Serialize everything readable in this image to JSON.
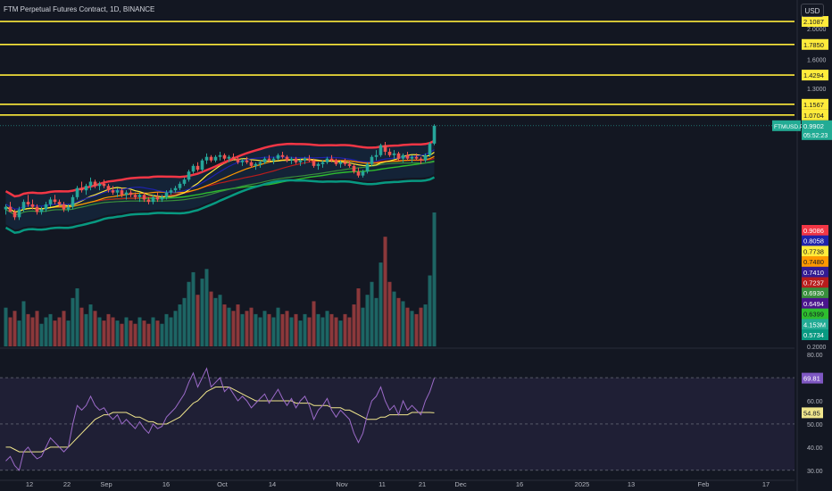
{
  "header": {
    "title": "FTM Perpetual Futures Contract, 1D, BINANCE",
    "currency_button": "USD"
  },
  "colors": {
    "background": "#131722",
    "up": "#26a69a",
    "down": "#ef5350",
    "level_line": "#ffeb3b",
    "rsi": "#9c6bc9",
    "rsi_ma": "#f0e68c",
    "upper_band": "#f23645",
    "lower_band": "#089981"
  },
  "chart_data": {
    "type": "line",
    "symbol": "FTMUSD.P",
    "scale": "log",
    "price_axis": {
      "ticks": [
        "2.0000",
        "1.6000",
        "1.3000",
        "1.0000",
        "0.2000"
      ],
      "level_lines": [
        {
          "value": 2.1087,
          "label": "2.1087"
        },
        {
          "value": 1.785,
          "label": "1.7850"
        },
        {
          "value": 1.4294,
          "label": "1.4294"
        },
        {
          "value": 1.1567,
          "label": "1.1567"
        },
        {
          "value": 1.0704,
          "label": "1.0704"
        }
      ],
      "last_price": {
        "symbol": "FTMUSD.P",
        "value": "0.9902",
        "countdown": "05:52:23"
      },
      "indicator_labels": [
        {
          "value": "0.9086",
          "color": "#f23645"
        },
        {
          "value": "0.8058",
          "color": "#1e22aa"
        },
        {
          "value": "0.7738",
          "color": "#ffeb3b"
        },
        {
          "value": "0.7480",
          "color": "#ff9800"
        },
        {
          "value": "0.7410",
          "color": "#311b92"
        },
        {
          "value": "0.7237",
          "color": "#b71c1c"
        },
        {
          "value": "0.6930",
          "color": "#388e3c"
        },
        {
          "value": "0.6494",
          "color": "#4a148c"
        },
        {
          "value": "0.6399",
          "color": "#2ebd2e"
        },
        {
          "value": "4.153M",
          "color": "#22ab94"
        },
        {
          "value": "0.5734",
          "color": "#089981"
        }
      ]
    },
    "rsi_axis": {
      "ticks": [
        "80.00",
        "60.00",
        "50.00",
        "40.00",
        "30.00"
      ],
      "rsi_value": "69.81",
      "rsi_ma_value": "54.85",
      "upper_band": 70,
      "middle_band": 50,
      "lower_band": 30
    },
    "x_axis": {
      "ticks": [
        "12",
        "22",
        "Sep",
        "16",
        "Oct",
        "14",
        "Nov",
        "11",
        "21",
        "Dec",
        "16",
        "2025",
        "13",
        "Feb",
        "17"
      ]
    },
    "candles": [
      [
        0.54,
        0.56,
        0.52,
        0.55
      ],
      [
        0.55,
        0.57,
        0.53,
        0.53
      ],
      [
        0.53,
        0.54,
        0.5,
        0.51
      ],
      [
        0.51,
        0.55,
        0.5,
        0.54
      ],
      [
        0.54,
        0.58,
        0.53,
        0.57
      ],
      [
        0.57,
        0.6,
        0.55,
        0.56
      ],
      [
        0.56,
        0.58,
        0.54,
        0.55
      ],
      [
        0.55,
        0.56,
        0.52,
        0.53
      ],
      [
        0.53,
        0.55,
        0.52,
        0.54
      ],
      [
        0.54,
        0.57,
        0.53,
        0.56
      ],
      [
        0.56,
        0.59,
        0.55,
        0.58
      ],
      [
        0.58,
        0.6,
        0.56,
        0.57
      ],
      [
        0.57,
        0.58,
        0.55,
        0.56
      ],
      [
        0.56,
        0.57,
        0.53,
        0.54
      ],
      [
        0.54,
        0.56,
        0.53,
        0.55
      ],
      [
        0.55,
        0.6,
        0.54,
        0.59
      ],
      [
        0.59,
        0.64,
        0.58,
        0.63
      ],
      [
        0.63,
        0.66,
        0.61,
        0.62
      ],
      [
        0.62,
        0.65,
        0.6,
        0.64
      ],
      [
        0.64,
        0.68,
        0.62,
        0.66
      ],
      [
        0.66,
        0.67,
        0.63,
        0.64
      ],
      [
        0.64,
        0.66,
        0.62,
        0.65
      ],
      [
        0.65,
        0.67,
        0.63,
        0.64
      ],
      [
        0.64,
        0.65,
        0.61,
        0.62
      ],
      [
        0.62,
        0.64,
        0.6,
        0.61
      ],
      [
        0.61,
        0.63,
        0.59,
        0.62
      ],
      [
        0.62,
        0.63,
        0.59,
        0.6
      ],
      [
        0.6,
        0.62,
        0.58,
        0.61
      ],
      [
        0.61,
        0.62,
        0.59,
        0.6
      ],
      [
        0.6,
        0.61,
        0.58,
        0.59
      ],
      [
        0.59,
        0.61,
        0.57,
        0.6
      ],
      [
        0.6,
        0.61,
        0.57,
        0.58
      ],
      [
        0.58,
        0.59,
        0.56,
        0.57
      ],
      [
        0.57,
        0.6,
        0.56,
        0.59
      ],
      [
        0.59,
        0.61,
        0.57,
        0.58
      ],
      [
        0.58,
        0.6,
        0.57,
        0.59
      ],
      [
        0.59,
        0.62,
        0.58,
        0.61
      ],
      [
        0.61,
        0.63,
        0.6,
        0.62
      ],
      [
        0.62,
        0.64,
        0.61,
        0.63
      ],
      [
        0.63,
        0.66,
        0.62,
        0.65
      ],
      [
        0.65,
        0.68,
        0.64,
        0.67
      ],
      [
        0.67,
        0.72,
        0.66,
        0.71
      ],
      [
        0.71,
        0.75,
        0.7,
        0.74
      ],
      [
        0.74,
        0.76,
        0.71,
        0.72
      ],
      [
        0.72,
        0.78,
        0.71,
        0.77
      ],
      [
        0.77,
        0.81,
        0.75,
        0.79
      ],
      [
        0.79,
        0.8,
        0.76,
        0.77
      ],
      [
        0.77,
        0.8,
        0.76,
        0.79
      ],
      [
        0.79,
        0.82,
        0.77,
        0.8
      ],
      [
        0.8,
        0.81,
        0.77,
        0.78
      ],
      [
        0.78,
        0.8,
        0.76,
        0.79
      ],
      [
        0.79,
        0.81,
        0.77,
        0.78
      ],
      [
        0.78,
        0.79,
        0.75,
        0.76
      ],
      [
        0.76,
        0.78,
        0.74,
        0.77
      ],
      [
        0.77,
        0.79,
        0.75,
        0.76
      ],
      [
        0.76,
        0.77,
        0.73,
        0.74
      ],
      [
        0.74,
        0.76,
        0.72,
        0.75
      ],
      [
        0.75,
        0.77,
        0.73,
        0.76
      ],
      [
        0.76,
        0.79,
        0.75,
        0.78
      ],
      [
        0.78,
        0.8,
        0.76,
        0.77
      ],
      [
        0.77,
        0.79,
        0.75,
        0.78
      ],
      [
        0.78,
        0.81,
        0.77,
        0.8
      ],
      [
        0.8,
        0.82,
        0.78,
        0.79
      ],
      [
        0.79,
        0.8,
        0.76,
        0.77
      ],
      [
        0.77,
        0.79,
        0.75,
        0.78
      ],
      [
        0.78,
        0.79,
        0.75,
        0.76
      ],
      [
        0.76,
        0.78,
        0.74,
        0.77
      ],
      [
        0.77,
        0.79,
        0.75,
        0.78
      ],
      [
        0.78,
        0.8,
        0.76,
        0.77
      ],
      [
        0.77,
        0.78,
        0.73,
        0.74
      ],
      [
        0.74,
        0.76,
        0.72,
        0.75
      ],
      [
        0.75,
        0.77,
        0.73,
        0.76
      ],
      [
        0.76,
        0.79,
        0.75,
        0.78
      ],
      [
        0.78,
        0.8,
        0.76,
        0.77
      ],
      [
        0.77,
        0.78,
        0.74,
        0.75
      ],
      [
        0.75,
        0.77,
        0.73,
        0.76
      ],
      [
        0.76,
        0.78,
        0.74,
        0.75
      ],
      [
        0.75,
        0.77,
        0.73,
        0.74
      ],
      [
        0.74,
        0.75,
        0.7,
        0.71
      ],
      [
        0.71,
        0.73,
        0.68,
        0.69
      ],
      [
        0.69,
        0.72,
        0.68,
        0.71
      ],
      [
        0.71,
        0.76,
        0.7,
        0.75
      ],
      [
        0.75,
        0.8,
        0.74,
        0.79
      ],
      [
        0.79,
        0.83,
        0.77,
        0.8
      ],
      [
        0.8,
        0.87,
        0.79,
        0.86
      ],
      [
        0.86,
        0.88,
        0.8,
        0.82
      ],
      [
        0.82,
        0.84,
        0.79,
        0.8
      ],
      [
        0.8,
        0.83,
        0.78,
        0.81
      ],
      [
        0.81,
        0.82,
        0.77,
        0.78
      ],
      [
        0.78,
        0.81,
        0.76,
        0.8
      ],
      [
        0.8,
        0.82,
        0.77,
        0.78
      ],
      [
        0.78,
        0.8,
        0.76,
        0.79
      ],
      [
        0.79,
        0.81,
        0.77,
        0.78
      ],
      [
        0.78,
        0.79,
        0.75,
        0.77
      ],
      [
        0.77,
        0.81,
        0.76,
        0.8
      ],
      [
        0.8,
        0.88,
        0.79,
        0.87
      ],
      [
        0.87,
        1.0,
        0.86,
        0.9902
      ]
    ],
    "volume_millions": [
      1.2,
      0.9,
      1.1,
      0.8,
      1.4,
      1.0,
      0.9,
      1.1,
      0.7,
      0.9,
      1.0,
      0.8,
      0.9,
      1.1,
      0.8,
      1.5,
      1.8,
      1.2,
      1.0,
      1.3,
      1.1,
      0.9,
      0.8,
      1.0,
      0.9,
      0.8,
      0.7,
      0.9,
      0.8,
      0.7,
      0.9,
      0.8,
      0.7,
      0.9,
      0.8,
      0.7,
      1.0,
      0.9,
      1.1,
      1.3,
      1.5,
      2.0,
      2.3,
      1.6,
      2.1,
      2.4,
      1.7,
      1.5,
      1.6,
      1.3,
      1.2,
      1.1,
      1.3,
      1.0,
      1.1,
      1.2,
      1.0,
      0.9,
      1.1,
      1.0,
      0.9,
      1.2,
      1.0,
      1.1,
      0.9,
      1.0,
      0.8,
      1.0,
      0.9,
      1.4,
      1.0,
      0.9,
      1.1,
      1.0,
      0.9,
      0.8,
      1.0,
      0.9,
      1.3,
      1.8,
      1.2,
      1.6,
      2.0,
      1.5,
      2.6,
      3.4,
      2.0,
      1.7,
      1.5,
      1.4,
      1.2,
      1.1,
      1.0,
      1.2,
      1.3,
      2.2,
      4.153
    ],
    "rsi": [
      34,
      36,
      32,
      30,
      38,
      40,
      37,
      35,
      36,
      40,
      44,
      42,
      40,
      38,
      40,
      50,
      58,
      56,
      58,
      62,
      58,
      56,
      57,
      54,
      52,
      54,
      50,
      52,
      50,
      48,
      51,
      48,
      46,
      50,
      48,
      49,
      53,
      55,
      57,
      60,
      63,
      68,
      72,
      66,
      70,
      74,
      66,
      68,
      70,
      64,
      66,
      63,
      60,
      62,
      60,
      57,
      59,
      61,
      63,
      59,
      62,
      65,
      61,
      58,
      61,
      57,
      60,
      62,
      58,
      52,
      56,
      58,
      61,
      56,
      53,
      56,
      54,
      52,
      46,
      42,
      46,
      54,
      60,
      62,
      66,
      60,
      56,
      58,
      54,
      60,
      56,
      58,
      56,
      54,
      60,
      64,
      69.81
    ],
    "rsi_ma": [
      40,
      40,
      39,
      38,
      38,
      38,
      38,
      38,
      38,
      39,
      40,
      40,
      40,
      40,
      40,
      42,
      44,
      46,
      48,
      50,
      52,
      53,
      54,
      54,
      55,
      55,
      55,
      55,
      54,
      53,
      53,
      52,
      51,
      51,
      50,
      50,
      50,
      51,
      52,
      53,
      55,
      57,
      59,
      60,
      62,
      64,
      65,
      66,
      66,
      66,
      66,
      65,
      64,
      63,
      62,
      61,
      60,
      60,
      60,
      60,
      60,
      60,
      60,
      60,
      60,
      59,
      59,
      59,
      59,
      58,
      58,
      58,
      58,
      57,
      57,
      57,
      56,
      56,
      55,
      54,
      53,
      52,
      52,
      52,
      53,
      53,
      54,
      54,
      54,
      54,
      54,
      55,
      55,
      55,
      55,
      55,
      54.85
    ]
  }
}
